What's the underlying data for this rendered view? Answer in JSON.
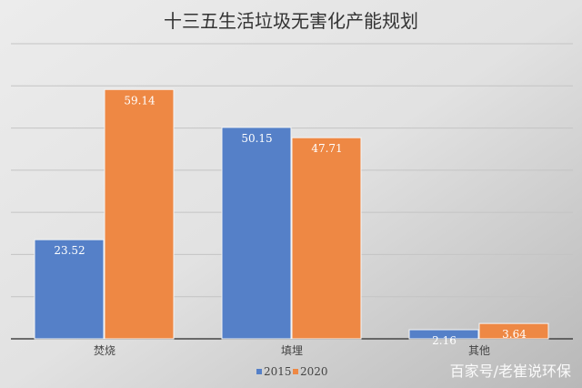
{
  "chart_data": {
    "type": "bar",
    "title": "十三五生活垃圾无害化产能规划",
    "categories": [
      "焚烧",
      "填埋",
      "其他"
    ],
    "series": [
      {
        "name": "2015",
        "values": [
          23.52,
          50.15,
          2.16
        ],
        "color": "#5580C8"
      },
      {
        "name": "2020",
        "values": [
          59.14,
          47.71,
          3.64
        ],
        "color": "#EE8844"
      }
    ],
    "ylim": [
      0,
      70
    ],
    "ytick_step": 10,
    "y_tick_labels_shown": false,
    "grid": true,
    "legend": "bottom",
    "data_labels": true
  },
  "watermark": "百家号/老崔说环保"
}
